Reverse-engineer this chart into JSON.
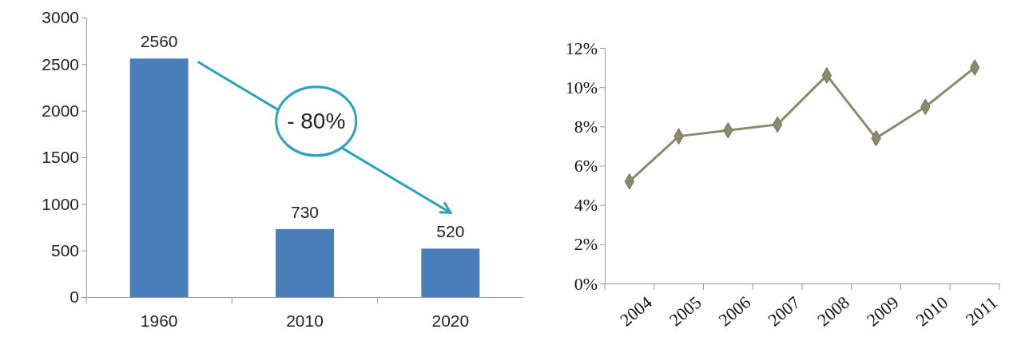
{
  "chart_data": [
    {
      "type": "bar",
      "categories": [
        "1960",
        "2010",
        "2020"
      ],
      "values": [
        2560,
        730,
        520
      ],
      "color": "#4a7ebb",
      "ylim": [
        0,
        3000
      ],
      "yticks": [
        0,
        500,
        1000,
        1500,
        2000,
        2500,
        3000
      ],
      "data_labels": true,
      "annotations": [
        "- 80%"
      ]
    },
    {
      "type": "line",
      "categories": [
        "2004",
        "2005",
        "2006",
        "2007",
        "2008",
        "2009",
        "2010",
        "2011"
      ],
      "series": [
        {
          "color": "#8c8a6c",
          "values": [
            5.2,
            7.5,
            7.8,
            8.1,
            10.6,
            7.4,
            9.0,
            11.0
          ]
        }
      ],
      "ylim": [
        0,
        12
      ],
      "yticks": [
        {
          "value": 0,
          "label": "0%"
        },
        {
          "value": 2,
          "label": "2%"
        },
        {
          "value": 4,
          "label": "4%"
        },
        {
          "value": 6,
          "label": "6%"
        },
        {
          "value": 8,
          "label": "8%"
        },
        {
          "value": 10,
          "label": "10%"
        },
        {
          "value": 12,
          "label": "12%"
        }
      ],
      "marker": "diamond",
      "line_style": "solid"
    }
  ]
}
